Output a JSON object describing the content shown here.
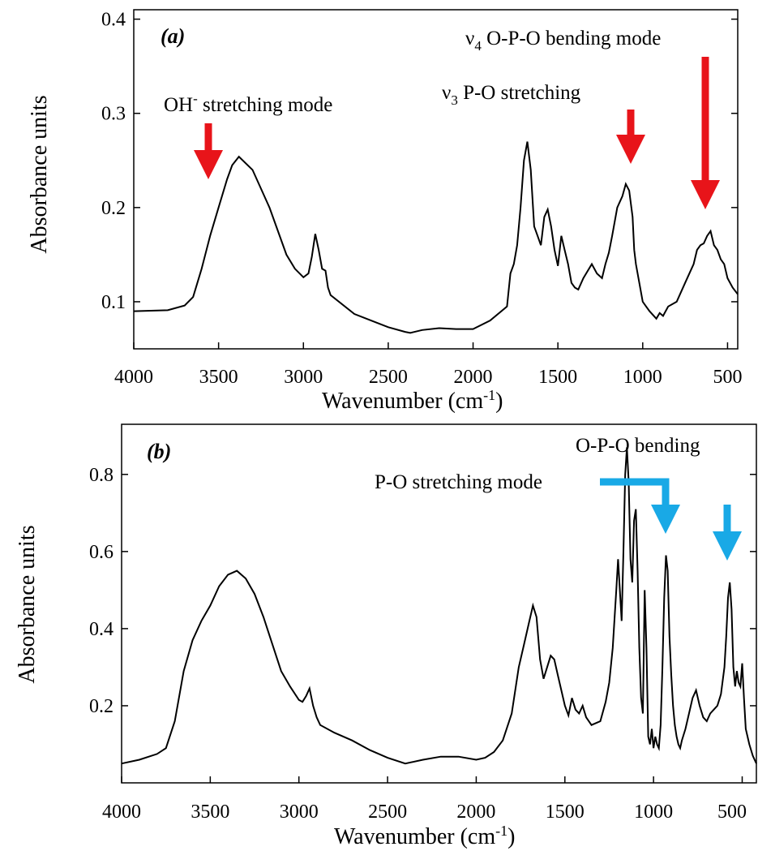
{
  "figure": {
    "panels": [
      {
        "tag": "(a)",
        "ylabel": "Absorbance units",
        "xlabel": "Wavenumber (cm-1)",
        "xticks": [
          "4000",
          "3500",
          "3000",
          "2500",
          "2000",
          "1500",
          "1000",
          "500"
        ],
        "yticks": [
          "0.1",
          "0.2",
          "0.3",
          "0.4"
        ],
        "annotations": [
          {
            "text": "OH- stretching mode",
            "arrow_color": "#e8141a"
          },
          {
            "text": "ν3 P-O stretching",
            "arrow_color": "#e8141a"
          },
          {
            "text": "ν4 O-P-O bending mode",
            "arrow_color": "#e8141a"
          }
        ]
      },
      {
        "tag": "(b)",
        "ylabel": "Absorbance units",
        "xlabel": "Wavenumber (cm-1)",
        "xticks": [
          "4000",
          "3500",
          "3000",
          "2500",
          "2000",
          "1500",
          "1000",
          "500"
        ],
        "yticks": [
          "0.2",
          "0.4",
          "0.6",
          "0.8"
        ],
        "annotations": [
          {
            "text": "O-P-O bending",
            "arrow_color": "#19a9e6"
          },
          {
            "text": "P-O stretching mode",
            "arrow_color": "#19a9e6"
          }
        ]
      }
    ]
  },
  "chart_data": [
    {
      "type": "line",
      "title": "(a)",
      "xlabel": "Wavenumber (cm-1)",
      "ylabel": "Absorbance units",
      "xlim": [
        4000,
        440
      ],
      "ylim": [
        0.05,
        0.41
      ],
      "grid": false,
      "x": [
        4000,
        3800,
        3700,
        3650,
        3600,
        3550,
        3500,
        3450,
        3420,
        3380,
        3300,
        3200,
        3100,
        3050,
        3000,
        2970,
        2950,
        2930,
        2910,
        2890,
        2870,
        2855,
        2840,
        2700,
        2600,
        2500,
        2400,
        2370,
        2300,
        2200,
        2100,
        2000,
        1900,
        1800,
        1780,
        1760,
        1740,
        1720,
        1700,
        1680,
        1660,
        1640,
        1620,
        1600,
        1580,
        1560,
        1540,
        1520,
        1500,
        1480,
        1460,
        1440,
        1420,
        1400,
        1380,
        1350,
        1300,
        1270,
        1240,
        1220,
        1200,
        1180,
        1150,
        1120,
        1100,
        1080,
        1060,
        1050,
        1040,
        1020,
        1000,
        980,
        960,
        940,
        920,
        900,
        880,
        850,
        800,
        750,
        700,
        680,
        660,
        640,
        620,
        600,
        580,
        560,
        540,
        520,
        500,
        470,
        440
      ],
      "y": [
        0.09,
        0.091,
        0.096,
        0.105,
        0.135,
        0.17,
        0.2,
        0.23,
        0.245,
        0.254,
        0.24,
        0.2,
        0.15,
        0.135,
        0.126,
        0.13,
        0.148,
        0.172,
        0.155,
        0.135,
        0.133,
        0.115,
        0.107,
        0.087,
        0.08,
        0.073,
        0.068,
        0.067,
        0.07,
        0.072,
        0.071,
        0.071,
        0.08,
        0.095,
        0.13,
        0.14,
        0.16,
        0.2,
        0.25,
        0.27,
        0.24,
        0.18,
        0.17,
        0.16,
        0.19,
        0.198,
        0.18,
        0.155,
        0.138,
        0.17,
        0.155,
        0.14,
        0.12,
        0.115,
        0.113,
        0.125,
        0.14,
        0.13,
        0.125,
        0.14,
        0.152,
        0.17,
        0.2,
        0.212,
        0.225,
        0.218,
        0.19,
        0.155,
        0.14,
        0.12,
        0.1,
        0.095,
        0.09,
        0.086,
        0.082,
        0.088,
        0.085,
        0.095,
        0.1,
        0.12,
        0.14,
        0.155,
        0.16,
        0.162,
        0.17,
        0.175,
        0.16,
        0.155,
        0.145,
        0.14,
        0.125,
        0.115,
        0.108
      ]
    },
    {
      "type": "line",
      "title": "(b)",
      "xlabel": "Wavenumber (cm-1)",
      "ylabel": "Absorbance units",
      "xlim": [
        4000,
        420
      ],
      "ylim": [
        0.0,
        0.93
      ],
      "grid": false,
      "x": [
        4000,
        3900,
        3800,
        3750,
        3700,
        3650,
        3600,
        3550,
        3500,
        3450,
        3400,
        3350,
        3300,
        3250,
        3200,
        3150,
        3100,
        3050,
        3000,
        2980,
        2960,
        2940,
        2920,
        2900,
        2880,
        2800,
        2700,
        2600,
        2500,
        2400,
        2300,
        2200,
        2100,
        2000,
        1950,
        1900,
        1850,
        1800,
        1760,
        1730,
        1700,
        1680,
        1660,
        1640,
        1620,
        1600,
        1580,
        1560,
        1540,
        1520,
        1500,
        1480,
        1460,
        1440,
        1420,
        1400,
        1380,
        1350,
        1300,
        1270,
        1250,
        1230,
        1210,
        1200,
        1190,
        1180,
        1170,
        1160,
        1150,
        1140,
        1130,
        1120,
        1110,
        1100,
        1090,
        1080,
        1070,
        1060,
        1050,
        1040,
        1030,
        1020,
        1010,
        1000,
        990,
        980,
        970,
        960,
        950,
        940,
        930,
        920,
        910,
        900,
        890,
        880,
        870,
        860,
        850,
        840,
        820,
        800,
        780,
        760,
        740,
        720,
        700,
        680,
        660,
        640,
        620,
        600,
        590,
        580,
        570,
        560,
        550,
        540,
        530,
        520,
        510,
        500,
        490,
        480,
        460,
        440,
        420
      ],
      "y": [
        0.05,
        0.06,
        0.075,
        0.09,
        0.16,
        0.29,
        0.37,
        0.42,
        0.46,
        0.51,
        0.54,
        0.55,
        0.53,
        0.49,
        0.43,
        0.36,
        0.29,
        0.25,
        0.215,
        0.21,
        0.225,
        0.245,
        0.2,
        0.17,
        0.15,
        0.13,
        0.11,
        0.085,
        0.065,
        0.05,
        0.06,
        0.068,
        0.068,
        0.06,
        0.065,
        0.08,
        0.11,
        0.18,
        0.3,
        0.36,
        0.42,
        0.46,
        0.43,
        0.32,
        0.27,
        0.3,
        0.33,
        0.32,
        0.28,
        0.24,
        0.2,
        0.175,
        0.22,
        0.19,
        0.18,
        0.2,
        0.17,
        0.15,
        0.16,
        0.21,
        0.26,
        0.35,
        0.5,
        0.58,
        0.5,
        0.42,
        0.6,
        0.8,
        0.87,
        0.78,
        0.58,
        0.52,
        0.68,
        0.71,
        0.55,
        0.35,
        0.22,
        0.18,
        0.5,
        0.35,
        0.12,
        0.1,
        0.14,
        0.09,
        0.12,
        0.1,
        0.09,
        0.15,
        0.3,
        0.48,
        0.59,
        0.55,
        0.38,
        0.28,
        0.2,
        0.15,
        0.12,
        0.1,
        0.09,
        0.11,
        0.14,
        0.18,
        0.22,
        0.24,
        0.2,
        0.17,
        0.16,
        0.18,
        0.19,
        0.2,
        0.23,
        0.3,
        0.38,
        0.48,
        0.52,
        0.45,
        0.3,
        0.25,
        0.29,
        0.26,
        0.25,
        0.31,
        0.22,
        0.14,
        0.1,
        0.07,
        0.05
      ]
    }
  ]
}
